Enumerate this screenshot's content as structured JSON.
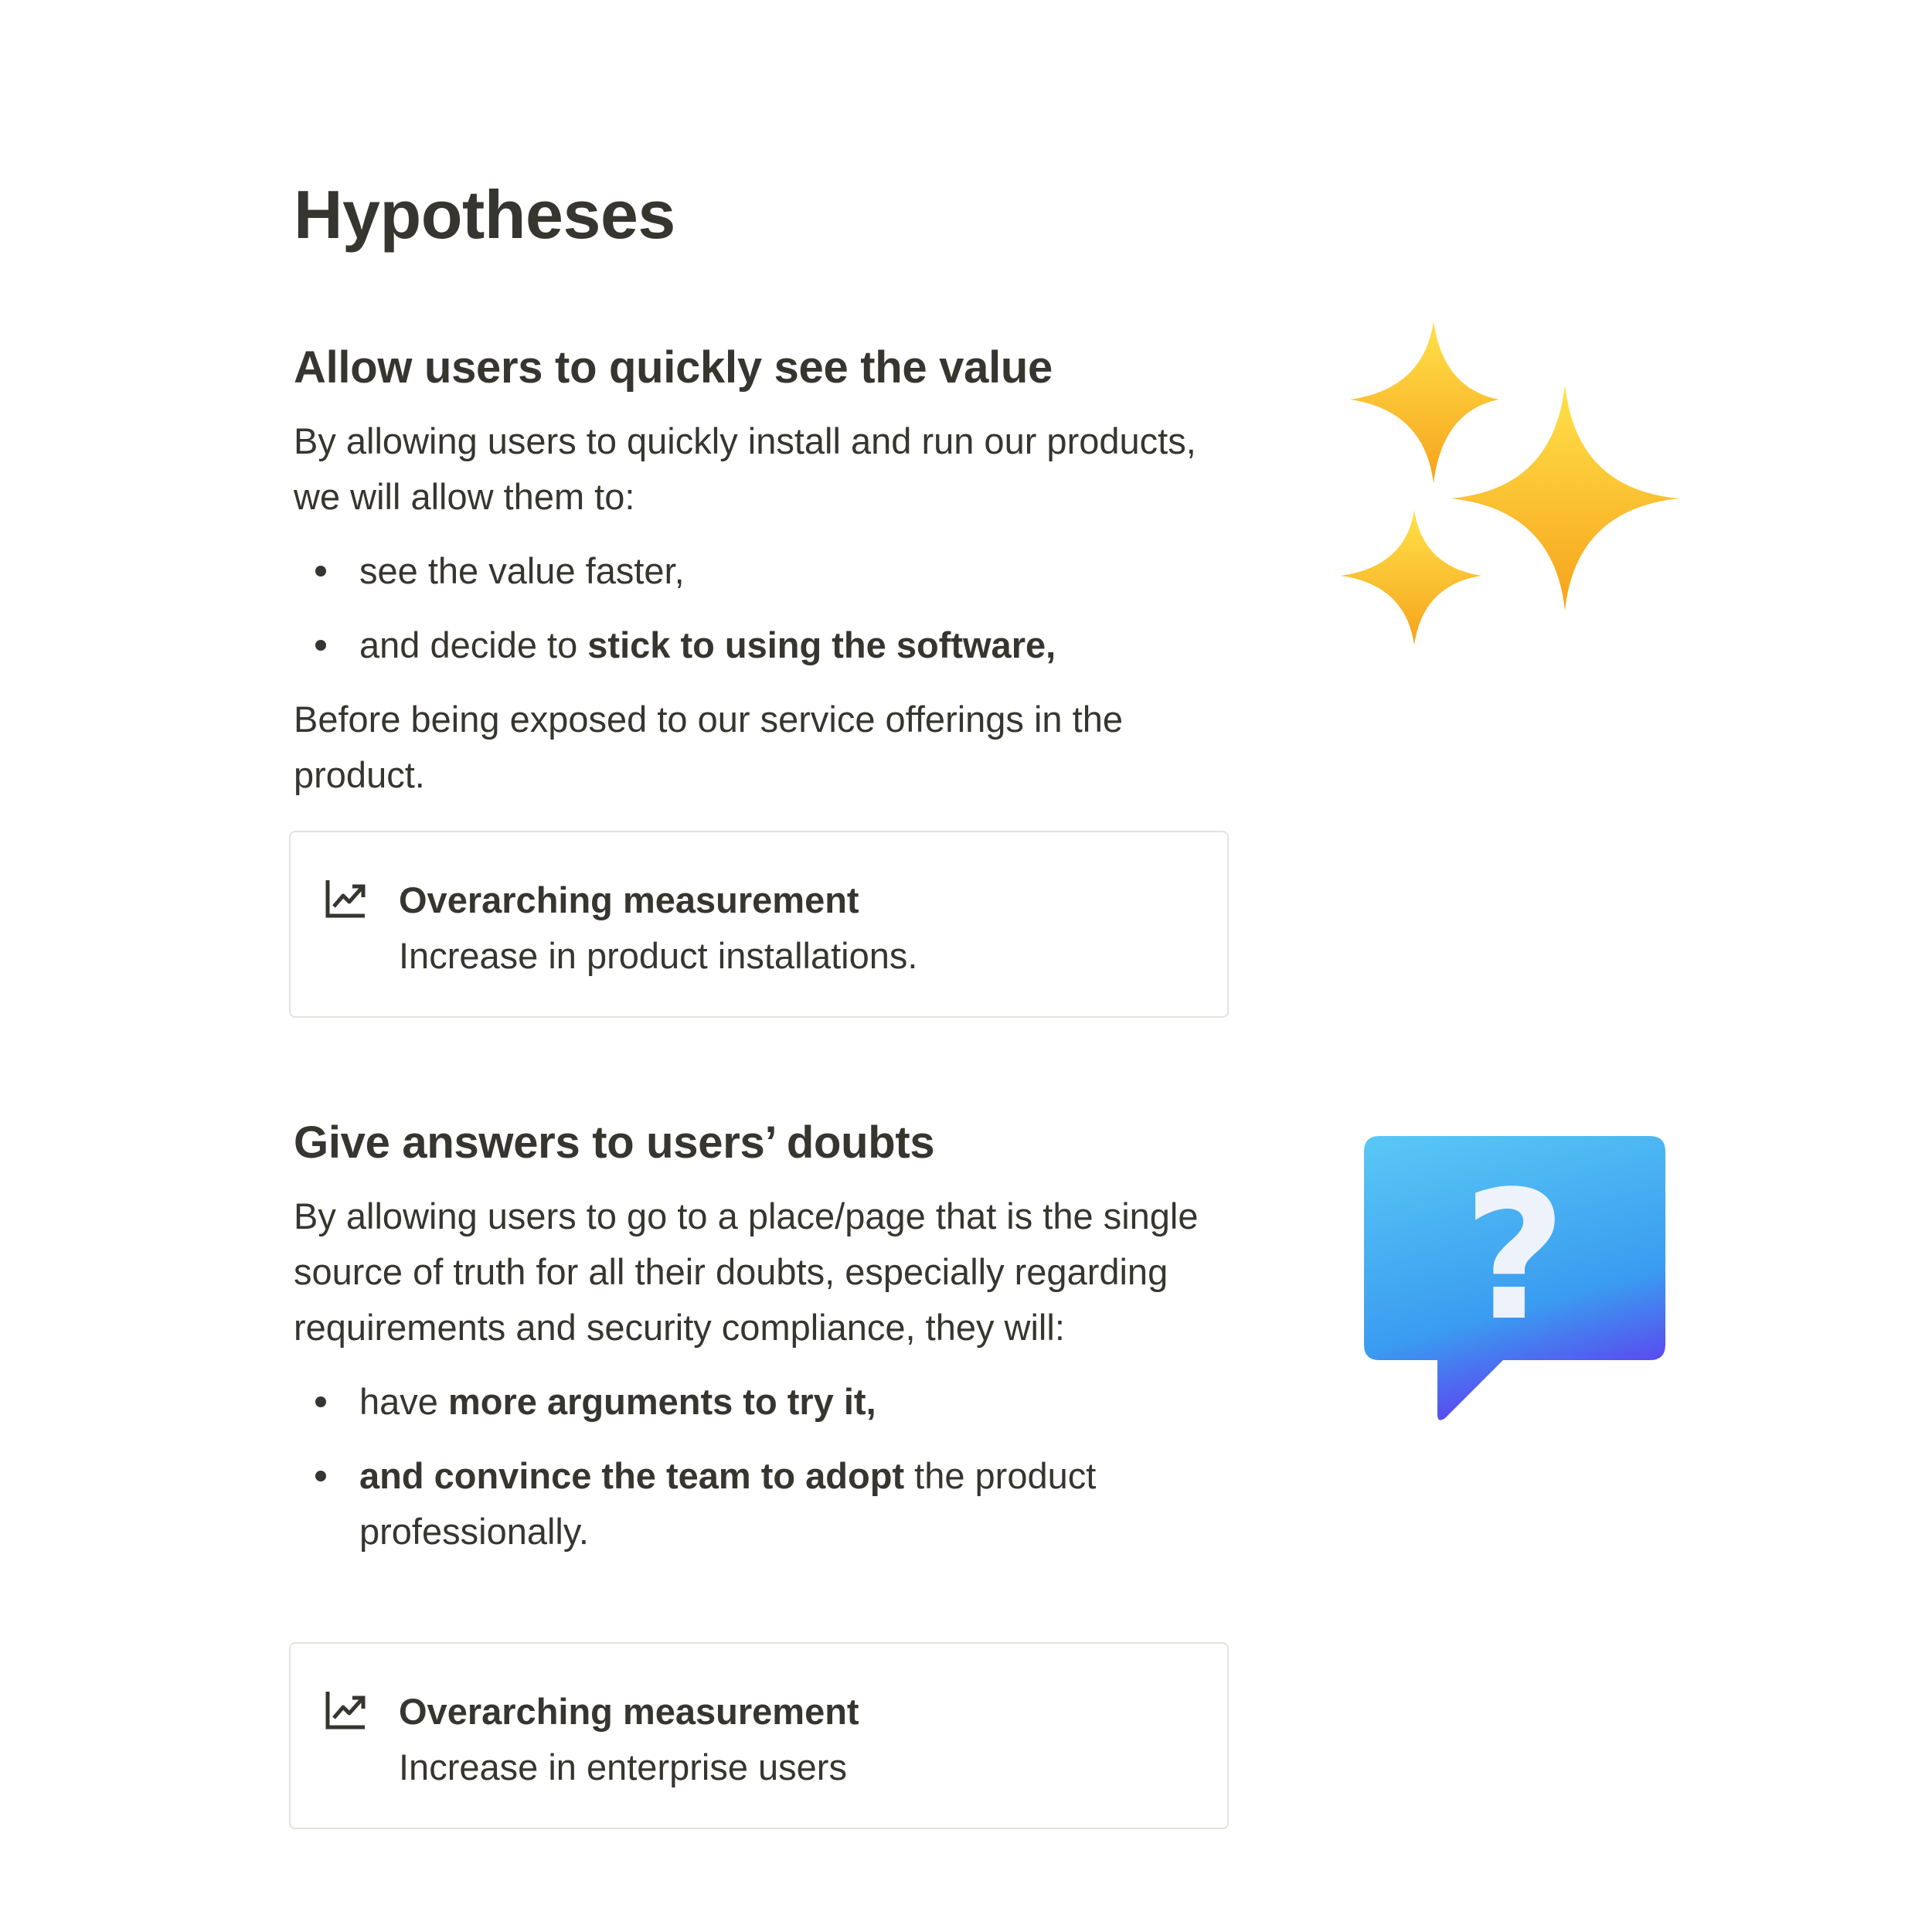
{
  "page": {
    "title": "Hypotheses"
  },
  "sections": [
    {
      "heading": "Allow users to quickly see the value",
      "intro": "By allowing users to quickly install and run our products, we will allow them to:",
      "bullets": [
        {
          "parts": [
            {
              "text": "see the value faster,",
              "bold": false
            }
          ]
        },
        {
          "parts": [
            {
              "text": "and decide to ",
              "bold": false
            },
            {
              "text": "stick to using the software,",
              "bold": true
            }
          ]
        }
      ],
      "outro": "Before being exposed to our service offerings in the product.",
      "callout": {
        "icon": "trending-up-icon",
        "title": "Overarching measurement",
        "text": "Increase in product installations."
      },
      "emoji": "sparkles-icon"
    },
    {
      "heading": "Give answers to users’ doubts",
      "intro": "By allowing users to go to a place/page that is the single source of truth for all their doubts, especially regarding requirements and security compliance, they will:",
      "bullets": [
        {
          "parts": [
            {
              "text": "have ",
              "bold": false
            },
            {
              "text": "more arguments to try it,",
              "bold": true
            }
          ]
        },
        {
          "parts": [
            {
              "text": "and convince the team to adopt",
              "bold": true
            },
            {
              "text": " the product professionally.",
              "bold": false
            }
          ]
        }
      ],
      "callout": {
        "icon": "trending-up-icon",
        "title": "Overarching measurement",
        "text": "Increase in enterprise users"
      },
      "emoji": "question-bubble-icon"
    }
  ],
  "colors": {
    "text": "#37352f",
    "border": "#e3e2de",
    "sparkle": "#fbc02d",
    "bubble": "#3ea8f0"
  }
}
